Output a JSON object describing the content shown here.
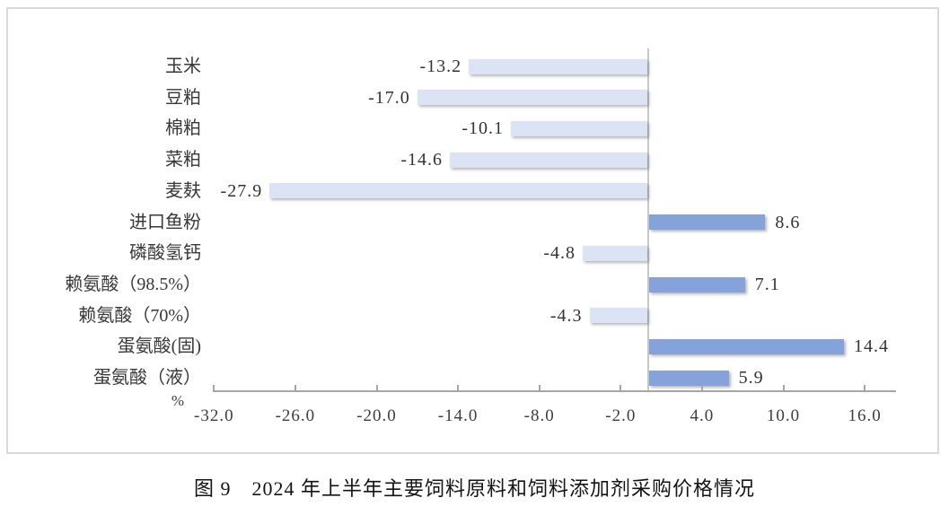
{
  "figure": {
    "caption": "图 9　2024 年上半年主要饲料原料和饲料添加剂采购价格情况",
    "unit_label": "%"
  },
  "chart_data": {
    "type": "bar",
    "orientation": "horizontal",
    "title": "图 9　2024 年上半年主要饲料原料和饲料添加剂采购价格情况",
    "xlabel": "%",
    "categories": [
      "玉米",
      "豆粕",
      "棉粕",
      "菜粕",
      "麦麸",
      "进口鱼粉",
      "磷酸氢钙",
      "赖氨酸（98.5%）",
      "赖氨酸（70%）",
      "蛋氨酸(固)",
      "蛋氨酸（液）"
    ],
    "values": [
      -13.2,
      -17.0,
      -10.1,
      -14.6,
      -27.9,
      8.6,
      -4.8,
      7.1,
      -4.3,
      14.4,
      5.9
    ],
    "value_labels": [
      "-13.2",
      "-17.0",
      "-10.1",
      "-14.6",
      "-27.9",
      "8.6",
      "-4.8",
      "7.1",
      "-4.3",
      "14.4",
      "5.9"
    ],
    "xticks": [
      -32.0,
      -26.0,
      -20.0,
      -14.0,
      -8.0,
      -2.0,
      4.0,
      10.0,
      16.0
    ],
    "xtick_labels": [
      "-32.0",
      "-26.0",
      "-20.0",
      "-14.0",
      "-8.0",
      "-2.0",
      "4.0",
      "10.0",
      "16.0"
    ],
    "axis_range": [
      -32.1,
      18.3
    ],
    "grid": "off",
    "legend": "none",
    "colors": {
      "positive_bar": "#86a2da",
      "negative_bar": "#dce3f4",
      "axis_line": "#a6a6a6",
      "zero_line": "#c8c8c8",
      "frame_border": "#d9d9d9"
    }
  }
}
